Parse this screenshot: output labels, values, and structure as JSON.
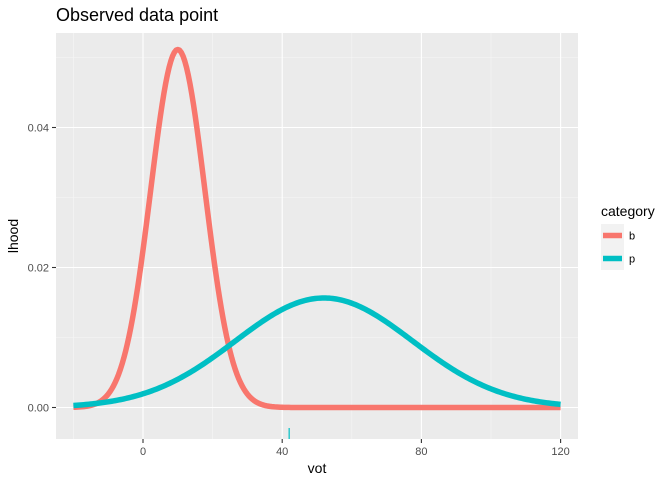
{
  "chart_data": {
    "type": "line",
    "title": "Observed data point",
    "xlabel": "vot",
    "ylabel": "lhood",
    "xlim": [
      -25,
      125
    ],
    "ylim": [
      -0.0045,
      0.0535
    ],
    "x_ticks": [
      0,
      40,
      80,
      120
    ],
    "x_tick_labels": [
      "0",
      "40",
      "80",
      "120"
    ],
    "y_ticks": [
      0.0,
      0.02,
      0.04
    ],
    "y_tick_labels": [
      "0.00",
      "0.02",
      "0.04"
    ],
    "grid": true,
    "legend": {
      "title": "category",
      "position": "right",
      "entries": [
        "b",
        "p"
      ]
    },
    "series": [
      {
        "name": "b",
        "color": "#F8766D",
        "mean": 10,
        "sd": 7.8,
        "x_range": [
          -20,
          120
        ]
      },
      {
        "name": "p",
        "color": "#00BFC4",
        "mean": 52,
        "sd": 25.5,
        "x_range": [
          -20,
          120
        ]
      }
    ],
    "observed_point": {
      "x": 42,
      "color": "#00BFC4"
    },
    "background_color": "#EBEBEB"
  }
}
